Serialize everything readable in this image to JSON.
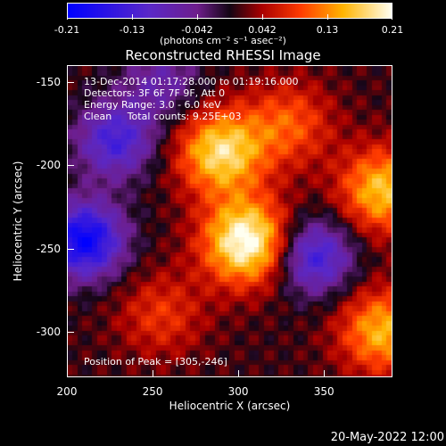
{
  "colorbar": {
    "tick_labels": [
      "-0.21",
      "-0.13",
      "-0.042",
      "0.042",
      "0.13",
      "0.21"
    ],
    "range": [
      -0.21,
      0.21
    ],
    "unit_label": "(photons cm⁻² s⁻¹ asec⁻²)"
  },
  "info": {
    "line1": "13-Dec-2014 01:17:28.000 to 01:19:16.000",
    "line2": "Detectors: 3F 6F 7F 9F, Att 0",
    "line3": "Energy Range: 3.0 - 6.0 keV",
    "line4": "Clean     Total counts: 9.25E+03"
  },
  "peak_text": "Position of Peak = [305,-246]",
  "date_stamp": "20-May-2022 12:00",
  "chart_data": {
    "type": "heatmap",
    "title": "Reconstructed RHESSI Image",
    "xlabel": "Heliocentric X (arcsec)",
    "ylabel": "Heliocentric Y (arcsec)",
    "xlim": [
      200,
      390
    ],
    "ylim": [
      -327,
      -140
    ],
    "x_ticks": [
      "200",
      "250",
      "300",
      "350"
    ],
    "y_ticks": [
      "-150",
      "-200",
      "-250",
      "-300"
    ],
    "colormap": "rainbow-like (blue-purple-red-orange-yellow-white)",
    "sources": [
      {
        "x": 305,
        "y": -246,
        "peak": 0.21
      },
      {
        "x": 290,
        "y": -192,
        "peak": 0.17
      },
      {
        "x": 385,
        "y": -215,
        "peak": 0.15
      },
      {
        "x": 385,
        "y": -300,
        "peak": 0.14
      },
      {
        "x": 330,
        "y": -175,
        "peak": 0.09
      },
      {
        "x": 255,
        "y": -290,
        "peak": 0.07
      }
    ],
    "minima": [
      {
        "x": 210,
        "y": -245,
        "value": -0.21
      },
      {
        "x": 345,
        "y": -255,
        "value": -0.15
      },
      {
        "x": 228,
        "y": -185,
        "value": -0.14
      },
      {
        "x": 255,
        "y": -150,
        "value": -0.08
      }
    ]
  }
}
